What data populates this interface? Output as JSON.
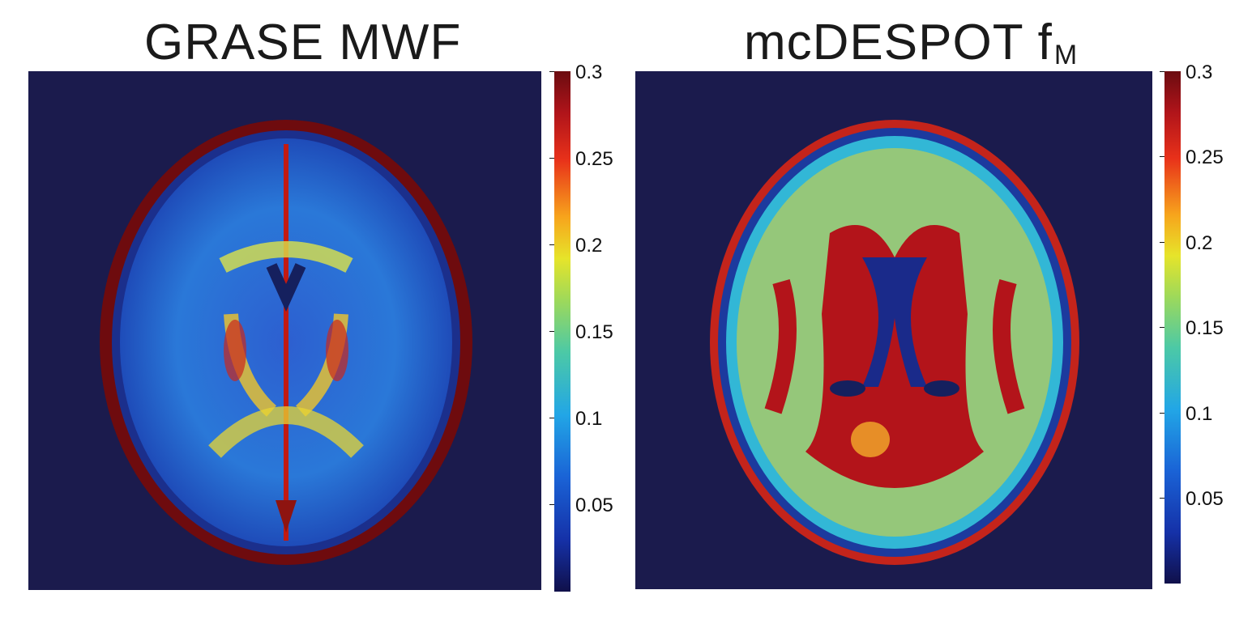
{
  "panels": [
    {
      "title": "GRASE MWF",
      "subscript": "",
      "map_caption": "GRASE myelin water fraction map of an axial brain slice",
      "colorbar": {
        "max": 0.3,
        "min": 0,
        "ticks": [
          "0.3",
          "0.25",
          "0.2",
          "0.15",
          "0.1",
          "0.05"
        ]
      }
    },
    {
      "title": "mcDESPOT f",
      "subscript": "M",
      "map_caption": "mcDESPOT myelin fraction map of an axial brain slice",
      "colorbar": {
        "max": 0.3,
        "min": 0,
        "ticks": [
          "0.3",
          "0.25",
          "0.2",
          "0.15",
          "0.1",
          "0.05"
        ]
      }
    }
  ],
  "colors": {
    "background": "#1b1b4d",
    "low": "#1531a8",
    "mid": "#e6e42a",
    "high": "#6b0c10"
  }
}
